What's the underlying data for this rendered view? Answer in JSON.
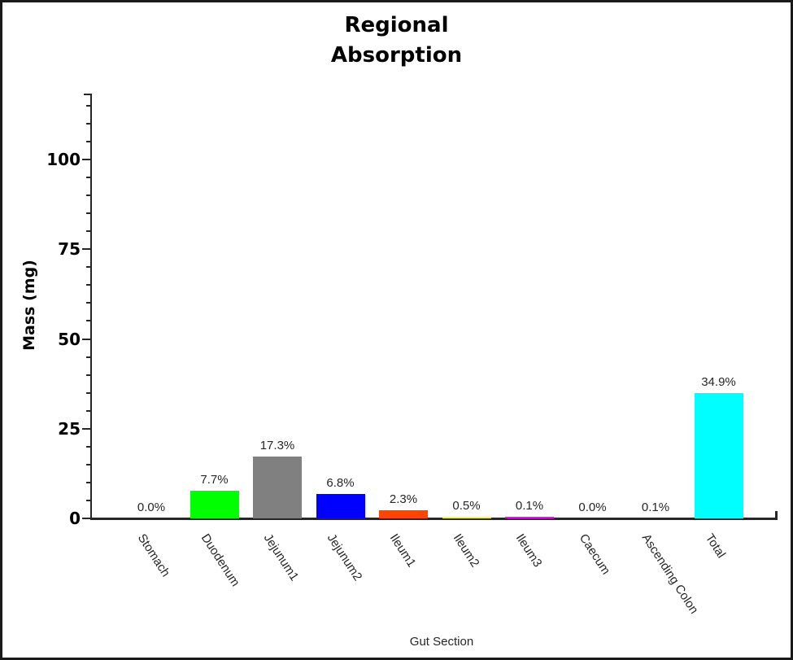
{
  "window": {
    "background_color": "#ffffff",
    "border_color": "#1a1a1a"
  },
  "chart_data": {
    "type": "bar",
    "title_lines": [
      "Regional",
      "Absorption"
    ],
    "title": "Regional Absorption",
    "xlabel": "Gut Section",
    "ylabel": "Mass (mg)",
    "categories": [
      "Stomach",
      "Duodenum",
      "Jejunum1",
      "Jejunum2",
      "Ileum1",
      "Ileum2",
      "Ileum3",
      "Caecum",
      "Ascending Colon",
      "Total"
    ],
    "values": [
      0.0,
      7.7,
      17.3,
      6.8,
      2.3,
      0.5,
      0.1,
      0.0,
      0.1,
      34.9
    ],
    "value_labels": [
      "0.0%",
      "7.7%",
      "17.3%",
      "6.8%",
      "2.3%",
      "0.5%",
      "0.1%",
      "0.0%",
      "0.1%",
      "34.9%"
    ],
    "bar_colors": [
      null,
      "#00ff00",
      "#808080",
      "#0000ff",
      "#ff4500",
      "#ffff00",
      "#ff00ff",
      null,
      null,
      "#00ffff"
    ],
    "yticks": [
      0,
      25,
      50,
      75,
      100
    ],
    "ytick_labels": [
      "0",
      "25",
      "50",
      "75",
      "100"
    ],
    "minor_tick_step": 5,
    "minor_tick_max": 115,
    "ylim": [
      0,
      118
    ],
    "grid": false,
    "legend": null,
    "axis_color": "#262626",
    "value_suffix": "%"
  }
}
